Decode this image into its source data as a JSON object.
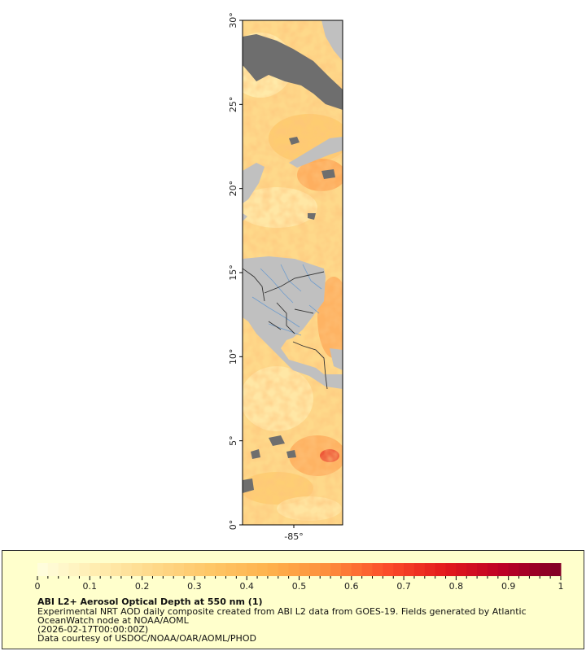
{
  "map": {
    "lat_ticks": [
      "0°",
      "5°",
      "10°",
      "15°",
      "20°",
      "25°",
      "30°"
    ],
    "lon_ticks": [
      "-85°"
    ],
    "lat_range": [
      0,
      30
    ],
    "lon_value": -85,
    "land_color": "#c0c0c0",
    "missing_color": "#6e6e6e",
    "border_color": "#333333",
    "river_color": "#6f9ccc"
  },
  "legend": {
    "title": "ABI L2+ Aerosol Optical Depth at 550 nm (1)",
    "subtitle_line1": "Experimental NRT AOD daily composite created from ABI L2 data from GOES-19. Fields generated by Atlantic",
    "subtitle_line2": "OceanWatch node at NOAA/AOML",
    "date": "(2026-02-17T00:00:00Z)",
    "credit": "Data courtesy of USDOC/NOAA/OAR/AOML/PHOD",
    "scale_ticks": [
      "0",
      "0.1",
      "0.2",
      "0.3",
      "0.4",
      "0.5",
      "0.6",
      "0.7",
      "0.8",
      "0.9",
      "1"
    ],
    "scale_range": [
      0,
      1
    ],
    "colors": [
      "#ffffe0",
      "#ffedb0",
      "#fed98a",
      "#fec666",
      "#feb24c",
      "#fd8d3c",
      "#fc4e2a",
      "#e31a1c",
      "#bd0026",
      "#800026"
    ]
  }
}
